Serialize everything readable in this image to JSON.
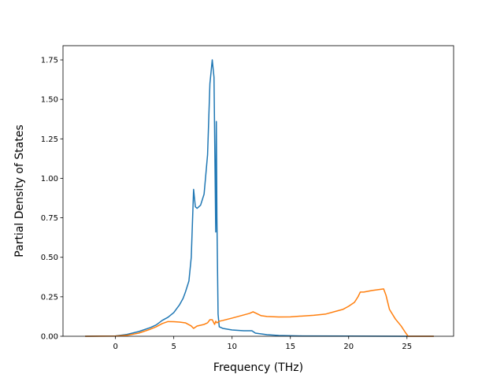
{
  "chart_data": {
    "type": "line",
    "title": "",
    "xlabel": "Frequency (THz)",
    "ylabel": "Partial Density of States",
    "xlim": [
      -4.5,
      29.0
    ],
    "ylim": [
      0.0,
      1.84
    ],
    "xticks": [
      0,
      5,
      10,
      15,
      20,
      25
    ],
    "yticks": [
      0.0,
      0.25,
      0.5,
      0.75,
      1.0,
      1.25,
      1.5,
      1.75
    ],
    "xtick_labels": [
      "0",
      "5",
      "10",
      "15",
      "20",
      "25"
    ],
    "ytick_labels": [
      "0.00",
      "0.25",
      "0.50",
      "0.75",
      "1.00",
      "1.25",
      "1.50",
      "1.75"
    ],
    "grid": false,
    "legend": "none",
    "series": [
      {
        "color": "#1f77b4",
        "x": [
          -2.6,
          0,
          1,
          2,
          3,
          3.5,
          4,
          4.5,
          5,
          5.5,
          5.8,
          6.0,
          6.3,
          6.5,
          6.7,
          6.85,
          7.0,
          7.3,
          7.6,
          7.9,
          8.1,
          8.3,
          8.45,
          8.6,
          8.65,
          8.7,
          8.8,
          8.9,
          9.2,
          10,
          11,
          11.7,
          12.0,
          13,
          14,
          16,
          20,
          25,
          27.3
        ],
        "y": [
          0.0,
          0.002,
          0.012,
          0.03,
          0.055,
          0.072,
          0.1,
          0.12,
          0.15,
          0.2,
          0.24,
          0.28,
          0.35,
          0.5,
          0.93,
          0.82,
          0.81,
          0.83,
          0.9,
          1.15,
          1.6,
          1.75,
          1.64,
          0.66,
          1.36,
          0.75,
          0.14,
          0.06,
          0.05,
          0.04,
          0.035,
          0.035,
          0.02,
          0.01,
          0.005,
          0.002,
          0.001,
          0.0,
          0.0
        ]
      },
      {
        "color": "#ff7f0e",
        "x": [
          -2.6,
          0,
          1,
          2,
          3,
          3.5,
          4.0,
          4.5,
          5.0,
          5.5,
          6.0,
          6.5,
          6.7,
          6.8,
          7.0,
          7.3,
          7.6,
          7.9,
          8.1,
          8.3,
          8.5,
          8.6,
          8.7,
          8.9,
          9.2,
          10,
          11,
          11.5,
          11.8,
          12.5,
          13,
          14,
          15,
          16,
          17,
          18,
          19,
          19.5,
          20,
          20.5,
          20.8,
          21.0,
          21.3,
          22,
          22.5,
          23.0,
          23.2,
          23.5,
          24.0,
          24.5,
          24.9,
          25.1,
          27.3
        ],
        "y": [
          0.0,
          0.001,
          0.006,
          0.02,
          0.045,
          0.06,
          0.08,
          0.093,
          0.092,
          0.09,
          0.085,
          0.065,
          0.05,
          0.055,
          0.065,
          0.07,
          0.075,
          0.085,
          0.105,
          0.105,
          0.075,
          0.095,
          0.085,
          0.095,
          0.1,
          0.115,
          0.135,
          0.145,
          0.155,
          0.13,
          0.125,
          0.122,
          0.123,
          0.128,
          0.133,
          0.14,
          0.16,
          0.17,
          0.19,
          0.215,
          0.25,
          0.28,
          0.28,
          0.29,
          0.295,
          0.3,
          0.26,
          0.17,
          0.11,
          0.065,
          0.02,
          0.0,
          0.0
        ]
      }
    ]
  }
}
